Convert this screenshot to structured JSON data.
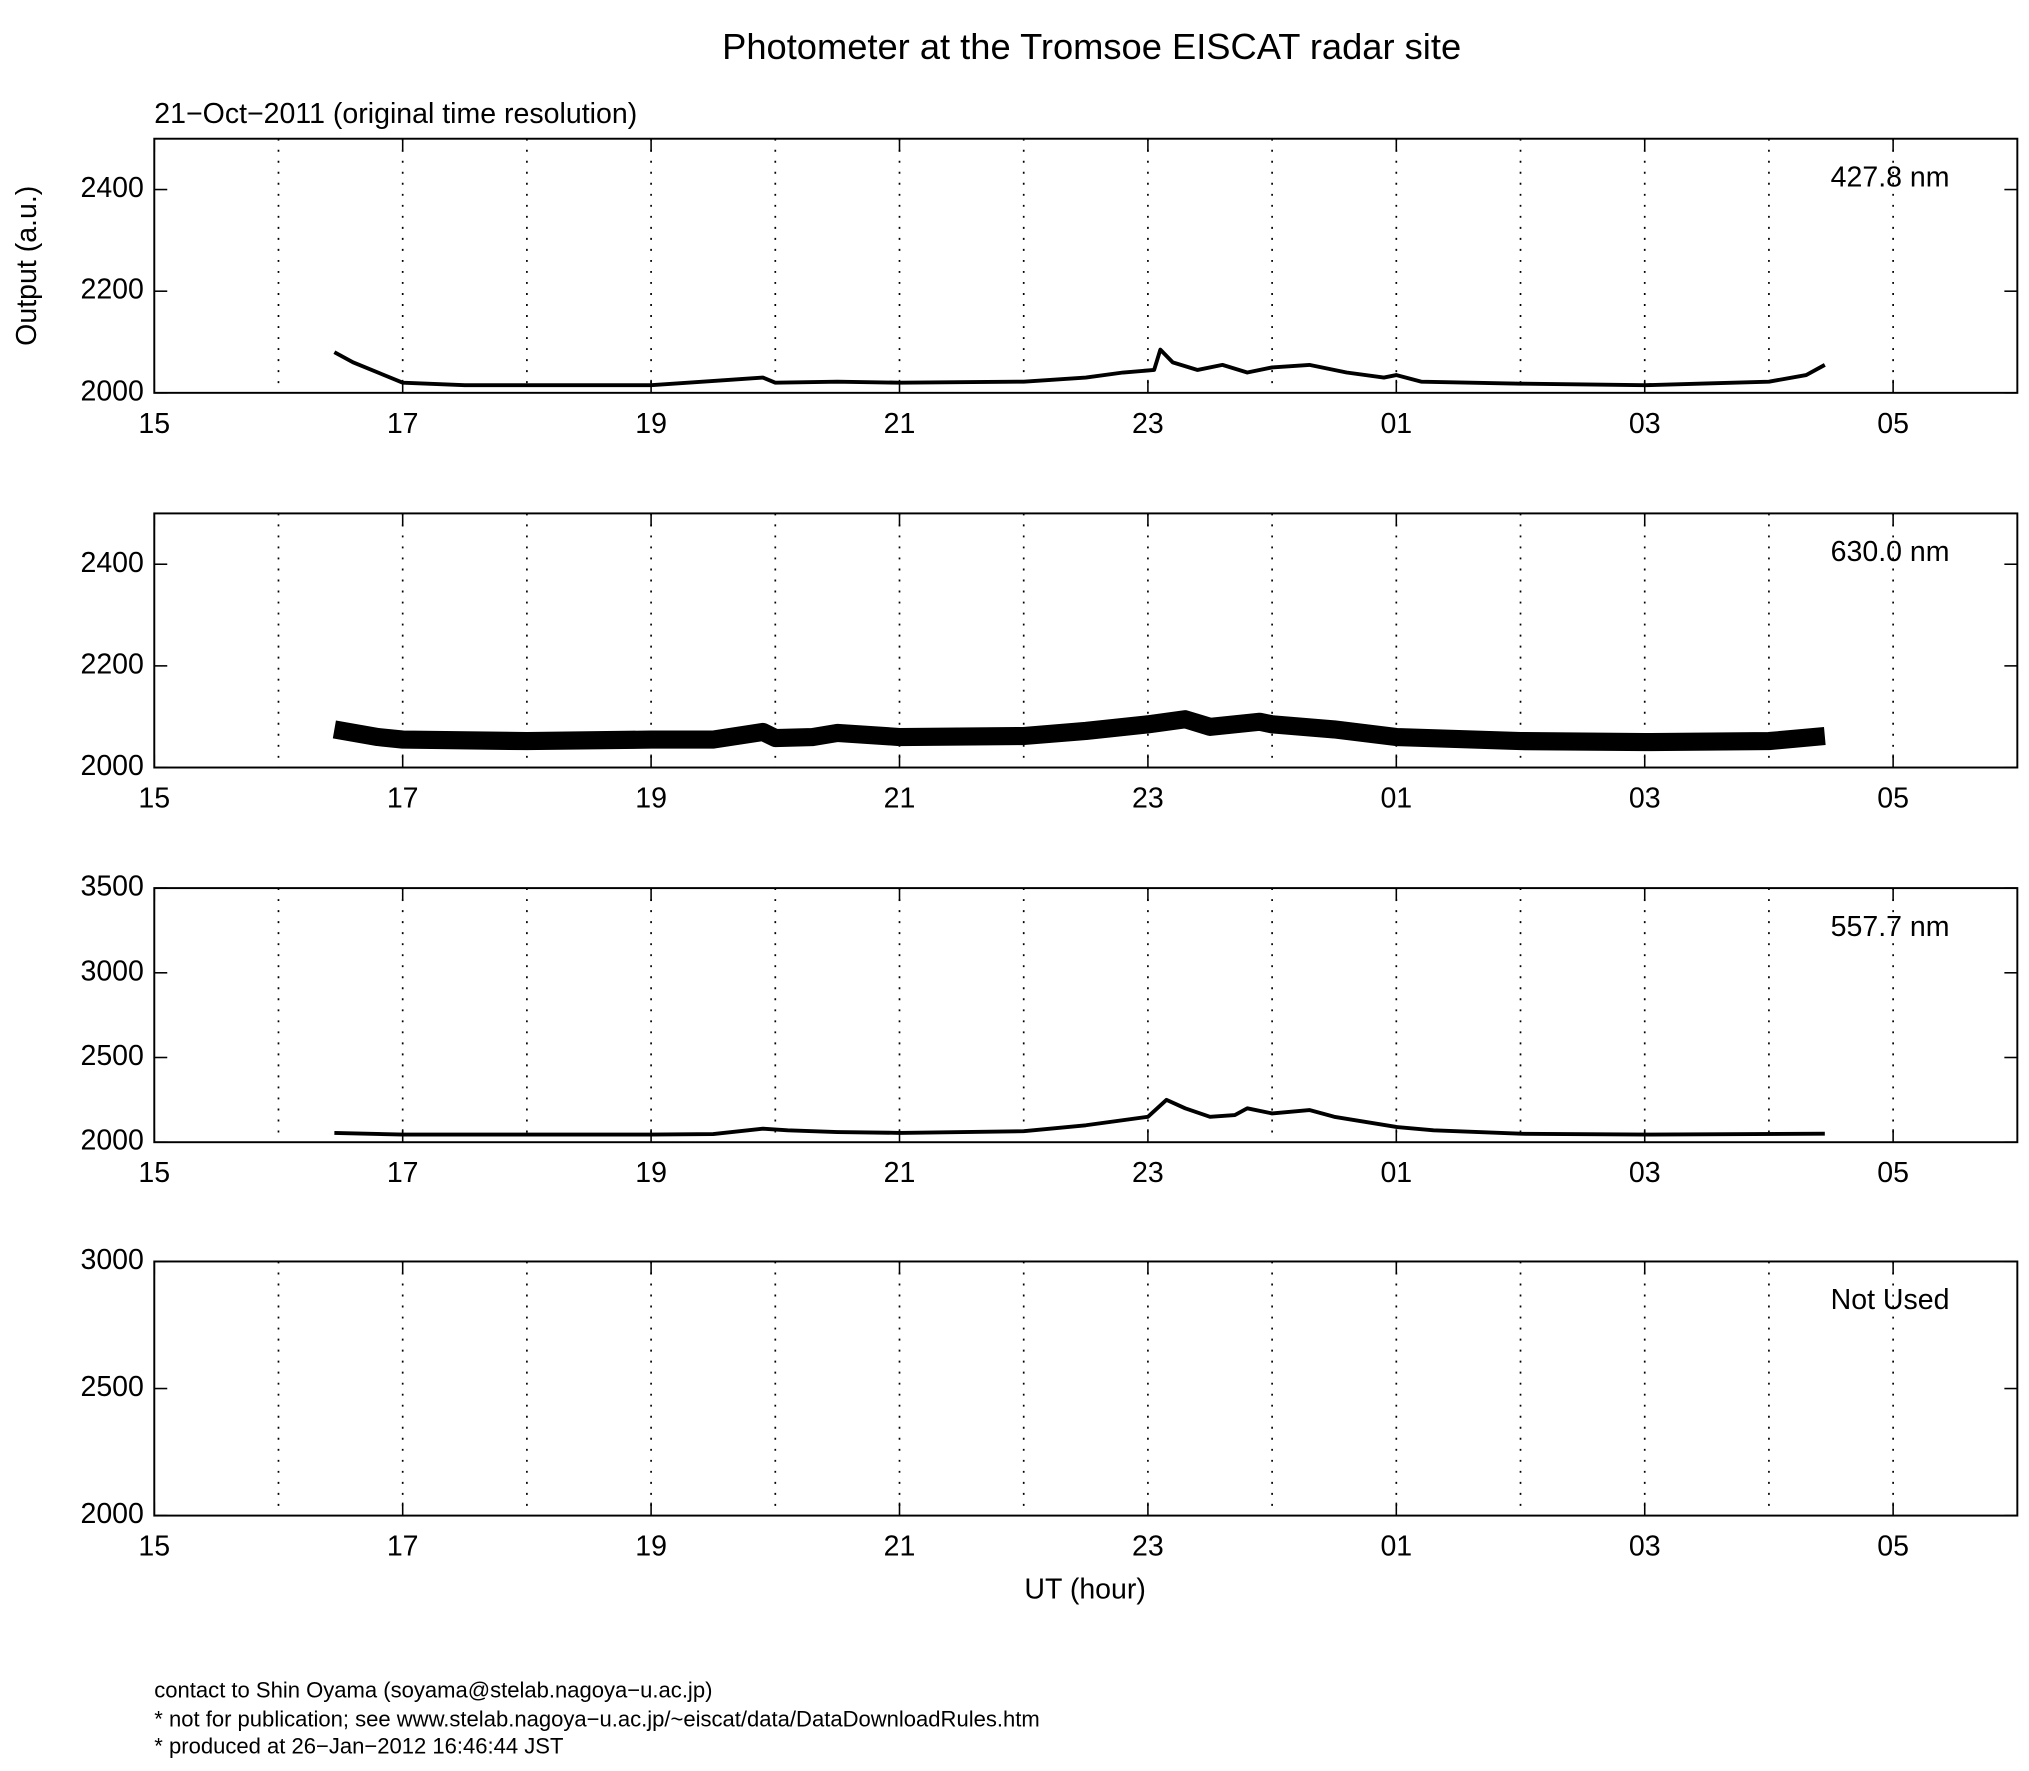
{
  "title": "Photometer at the Tromsoe EISCAT radar site",
  "subtitle": "21−Oct−2011 (original time resolution)",
  "ylabel": "Output (a.u.)",
  "xlabel": "UT (hour)",
  "notes": [
    "contact to Shin Oyama (soyama@stelab.nagoya−u.ac.jp)",
    "* not for publication; see www.stelab.nagoya−u.ac.jp/~eiscat/data/DataDownloadRules.htm",
    "* produced at 26−Jan−2012 16:46:44 JST"
  ],
  "chart_data": [
    {
      "type": "line",
      "annotation": "427.8 nm",
      "color": "#000000",
      "x": [
        16.45,
        16.6,
        17,
        17.5,
        19,
        19.9,
        20,
        20.5,
        21,
        22,
        22.5,
        22.8,
        23.05,
        23.1,
        23.2,
        23.4,
        23.6,
        23.8,
        24,
        24.3,
        24.6,
        24.9,
        25,
        25.2,
        26,
        27,
        28,
        28.3,
        28.45
      ],
      "values": [
        2080,
        2060,
        2020,
        2015,
        2015,
        2030,
        2020,
        2022,
        2020,
        2022,
        2030,
        2040,
        2045,
        2085,
        2060,
        2045,
        2055,
        2040,
        2050,
        2055,
        2040,
        2030,
        2035,
        2022,
        2018,
        2015,
        2022,
        2035,
        2055
      ],
      "xlim": [
        15,
        30
      ],
      "xticks": [
        15,
        17,
        19,
        21,
        23,
        {
          "value": 25,
          "label": "01"
        },
        {
          "value": 27,
          "label": "03"
        },
        {
          "value": 29,
          "label": "05"
        }
      ],
      "xminorticks": [
        16,
        18,
        20,
        22,
        24,
        26,
        28
      ],
      "ylim": [
        2000,
        2500
      ],
      "yticks": [
        2000,
        2200,
        2400
      ],
      "grid": true,
      "line_width": 3
    },
    {
      "type": "line",
      "annotation": "630.0 nm",
      "color": "#000000",
      "x": [
        16.45,
        16.8,
        17,
        18,
        19,
        19.5,
        19.9,
        20,
        20.3,
        20.5,
        21,
        22,
        22.5,
        23,
        23.3,
        23.5,
        23.9,
        24,
        24.5,
        25,
        26,
        27,
        28,
        28.45
      ],
      "values": [
        2075,
        2060,
        2055,
        2052,
        2055,
        2055,
        2070,
        2058,
        2060,
        2068,
        2060,
        2062,
        2072,
        2085,
        2095,
        2080,
        2090,
        2085,
        2075,
        2060,
        2052,
        2050,
        2052,
        2062
      ],
      "xlim": [
        15,
        30
      ],
      "xticks": [
        15,
        17,
        19,
        21,
        23,
        {
          "value": 25,
          "label": "01"
        },
        {
          "value": 27,
          "label": "03"
        },
        {
          "value": 29,
          "label": "05"
        }
      ],
      "xminorticks": [
        16,
        18,
        20,
        22,
        24,
        26,
        28
      ],
      "ylim": [
        2000,
        2500
      ],
      "yticks": [
        2000,
        2200,
        2400
      ],
      "grid": true,
      "line_width": 14
    },
    {
      "type": "line",
      "annotation": "557.7 nm",
      "color": "#000000",
      "x": [
        16.45,
        17,
        19,
        19.5,
        19.9,
        20.1,
        20.5,
        21,
        22,
        22.5,
        23,
        23.15,
        23.3,
        23.5,
        23.7,
        23.8,
        24,
        24.3,
        24.5,
        25,
        25.3,
        26,
        27,
        28.45
      ],
      "values": [
        2055,
        2045,
        2045,
        2048,
        2080,
        2070,
        2060,
        2055,
        2065,
        2100,
        2150,
        2250,
        2200,
        2150,
        2160,
        2200,
        2170,
        2190,
        2150,
        2090,
        2070,
        2050,
        2045,
        2050
      ],
      "xlim": [
        15,
        30
      ],
      "xticks": [
        15,
        17,
        19,
        21,
        23,
        {
          "value": 25,
          "label": "01"
        },
        {
          "value": 27,
          "label": "03"
        },
        {
          "value": 29,
          "label": "05"
        }
      ],
      "xminorticks": [
        16,
        18,
        20,
        22,
        24,
        26,
        28
      ],
      "ylim": [
        2000,
        3500
      ],
      "yticks": [
        2000,
        2500,
        3000,
        3500
      ],
      "grid": true,
      "line_width": 3
    },
    {
      "type": "line",
      "annotation": "Not Used",
      "color": "#000000",
      "x": [],
      "values": [],
      "xlim": [
        15,
        30
      ],
      "xticks": [
        15,
        17,
        19,
        21,
        23,
        {
          "value": 25,
          "label": "01"
        },
        {
          "value": 27,
          "label": "03"
        },
        {
          "value": 29,
          "label": "05"
        }
      ],
      "xminorticks": [
        16,
        18,
        20,
        22,
        24,
        26,
        28
      ],
      "ylim": [
        2000,
        3000
      ],
      "yticks": [
        2000,
        2500,
        3000
      ],
      "grid": true,
      "line_width": 3
    }
  ]
}
